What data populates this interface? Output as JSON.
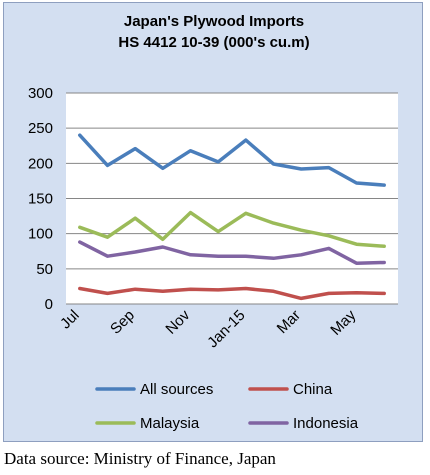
{
  "chart_data": {
    "type": "line",
    "title_lines": [
      "Japan's Plywood Imports",
      "HS 4412 10-39  (000's cu.m)"
    ],
    "categories": [
      "Jul",
      "Aug",
      "Sep",
      "Oct",
      "Nov",
      "Dec",
      "Jan-15",
      "Feb",
      "Mar",
      "Apr",
      "May",
      "Jun"
    ],
    "x_tick_labels": [
      "Jul",
      "Sep",
      "Nov",
      "Jan-15",
      "Mar",
      "May"
    ],
    "ylim": [
      0,
      300
    ],
    "y_ticks": [
      "0",
      "50",
      "100",
      "150",
      "200",
      "250",
      "300"
    ],
    "grid": true,
    "legend_position": "bottom",
    "series": [
      {
        "name": "All sources",
        "color": "#4a7ebb",
        "values": [
          240,
          197,
          221,
          193,
          218,
          202,
          233,
          199,
          192,
          194,
          172,
          169
        ]
      },
      {
        "name": "China",
        "color": "#c0504d",
        "values": [
          22,
          15,
          21,
          18,
          21,
          20,
          22,
          18,
          8,
          15,
          16,
          15
        ]
      },
      {
        "name": "Malaysia",
        "color": "#9bbb59",
        "values": [
          109,
          95,
          122,
          92,
          130,
          103,
          129,
          115,
          105,
          97,
          85,
          82
        ]
      },
      {
        "name": "Indonesia",
        "color": "#8064a2",
        "values": [
          88,
          68,
          74,
          81,
          70,
          68,
          68,
          65,
          70,
          79,
          58,
          59
        ]
      }
    ]
  },
  "footer": {
    "source": "Data source: Ministry of Finance, Japan"
  }
}
